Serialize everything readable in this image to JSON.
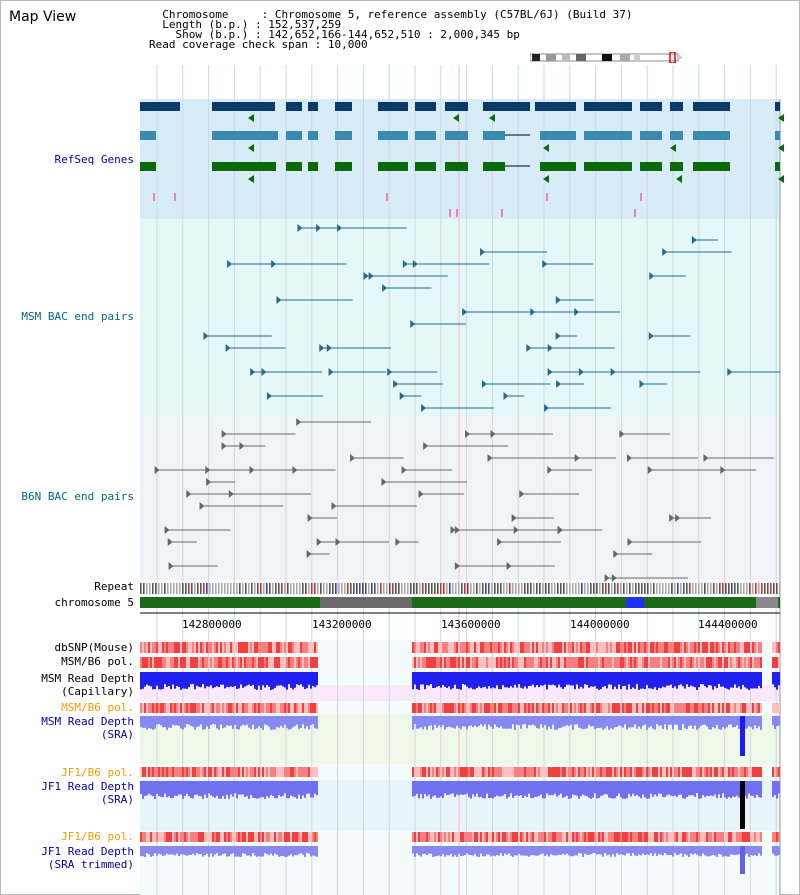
{
  "view_title": "Map View",
  "info": {
    "chromosome_label": "Chromosome",
    "chromosome_value": "Chromosome 5, reference assembly (C57BL/6J) (Build 37)",
    "length_label": "Length (b.p.)",
    "length_value": "152,537,259",
    "show_label": "Show (b.p.)",
    "show_value": "142,652,166-144,652,510 : 2,000,345 bp",
    "coverage_label": "Read coverage check span",
    "coverage_value": "10,000"
  },
  "tracks": {
    "refseq": "RefSeq Genes",
    "msm_bac": "MSM BAC end pairs",
    "b6n_bac": "B6N BAC end pairs",
    "repeat": "Repeat",
    "chromosome": "chromosome 5",
    "dbsnp": "dbSNP(Mouse)",
    "msm_pol": "MSM/B6 pol.",
    "msm_depth_cap_1": "MSM Read Depth",
    "msm_depth_cap_2": "(Capillary)",
    "msm_pol2": "MSM/B6 pol.",
    "msm_sra_1": "MSM Read Depth",
    "msm_sra_2": "(SRA)",
    "jf1_pol": "JF1/B6 pol.",
    "jf1_sra_1": "JF1 Read Depth",
    "jf1_sra_2": "(SRA)",
    "jf1_pol2": "JF1/B6 pol.",
    "jf1_trim_1": "JF1 Read Depth",
    "jf1_trim_2": "(SRA trimmed)"
  },
  "axis_ticks": [
    "142800000",
    "143200000",
    "143600000",
    "144000000",
    "144400000"
  ],
  "colors": {
    "refseq_bg": "#d8ecf8",
    "msm_bg": "#e4f8fa",
    "b6n_bg": "#f0f4fa",
    "gene_dark": "#0a3a6a",
    "gene_mid": "#3a8ab0",
    "gene_green": "#0a6a0a",
    "msm_pair": "#2a6a8a",
    "b6n_pair": "#666666",
    "label_blue": "#0000aa",
    "label_teal": "#006688",
    "label_orange": "#ff9900"
  }
}
